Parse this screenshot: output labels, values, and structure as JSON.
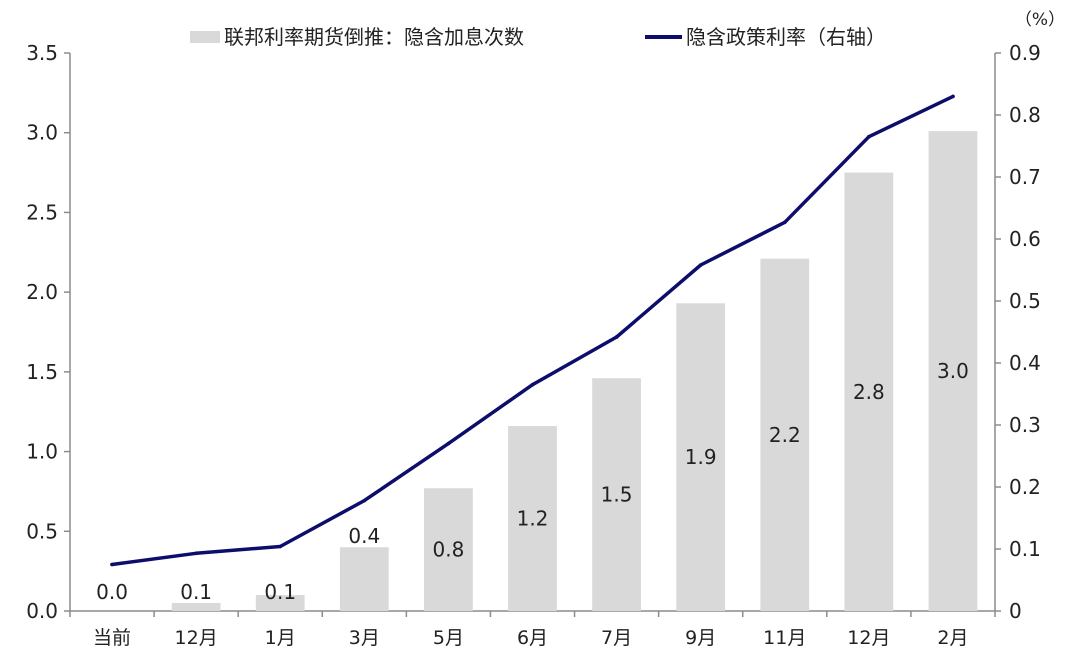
{
  "chart_data": {
    "type": "bar",
    "title": "",
    "categories": [
      "当前",
      "12月",
      "1月",
      "3月",
      "5月",
      "6月",
      "7月",
      "9月",
      "11月",
      "12月",
      "2月"
    ],
    "series": [
      {
        "name": "联邦利率期货倒推：隐含加息次数",
        "type": "bar",
        "axis": "left",
        "values": [
          0.0,
          0.05,
          0.1,
          0.4,
          0.77,
          1.16,
          1.46,
          1.93,
          2.21,
          2.75,
          3.01
        ],
        "labels": [
          "0.0",
          "0.1",
          "0.1",
          "0.4",
          "0.8",
          "1.2",
          "1.5",
          "1.9",
          "2.2",
          "2.8",
          "3.0"
        ]
      },
      {
        "name": "隐含政策利率（右轴）",
        "type": "line",
        "axis": "right",
        "values": [
          0.075,
          0.093,
          0.104,
          0.178,
          0.27,
          0.365,
          0.442,
          0.558,
          0.627,
          0.765,
          0.83
        ]
      }
    ],
    "y_left": {
      "ylim": [
        0,
        3.5
      ],
      "ticks": [
        "0.0",
        "0.5",
        "1.0",
        "1.5",
        "2.0",
        "2.5",
        "3.0",
        "3.5"
      ]
    },
    "y_right": {
      "ylim": [
        0,
        0.9
      ],
      "ticks": [
        "0",
        "0.1",
        "0.2",
        "0.3",
        "0.4",
        "0.5",
        "0.6",
        "0.7",
        "0.8",
        "0.9"
      ],
      "unit": "（%）"
    },
    "legend": "top",
    "grid": false,
    "colors": {
      "bar": "#d9d9d9",
      "line": "#0d0d6b",
      "axis": "#8c8c8c",
      "text": "#222222"
    }
  }
}
